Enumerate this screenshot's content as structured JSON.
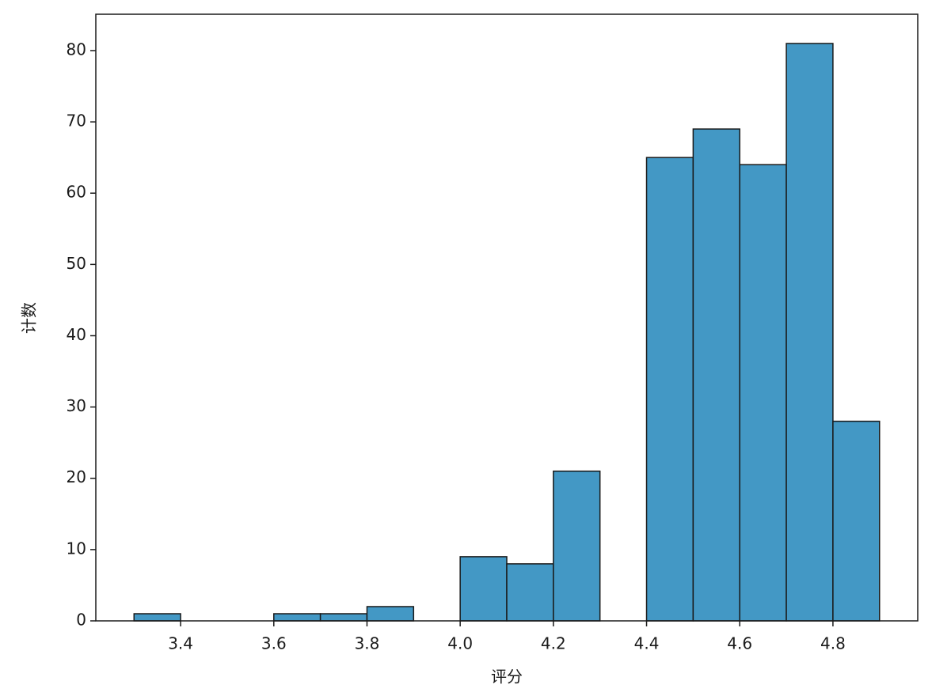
{
  "chart_data": {
    "type": "histogram",
    "x_label": "评分",
    "y_label": "计数",
    "bins": [
      3.3,
      3.4,
      3.5,
      3.6,
      3.7,
      3.8,
      3.9,
      4.0,
      4.1,
      4.2,
      4.3,
      4.4,
      4.5,
      4.6,
      4.7,
      4.8,
      4.9
    ],
    "values": [
      1,
      0,
      0,
      1,
      1,
      2,
      0,
      9,
      8,
      21,
      0,
      65,
      69,
      64,
      81,
      28
    ],
    "color": "#4398c5",
    "edgecolor": "#1a1a1a",
    "xlim": [
      3.218,
      4.982
    ],
    "ylim": [
      0,
      85.1
    ],
    "xticks": [
      3.4,
      3.6,
      3.8,
      {
        "value": 4,
        "label": "4.0"
      },
      4.2,
      4.4,
      4.6,
      4.8
    ],
    "yticks": [
      0,
      10,
      20,
      30,
      40,
      50,
      60,
      70,
      80
    ]
  }
}
